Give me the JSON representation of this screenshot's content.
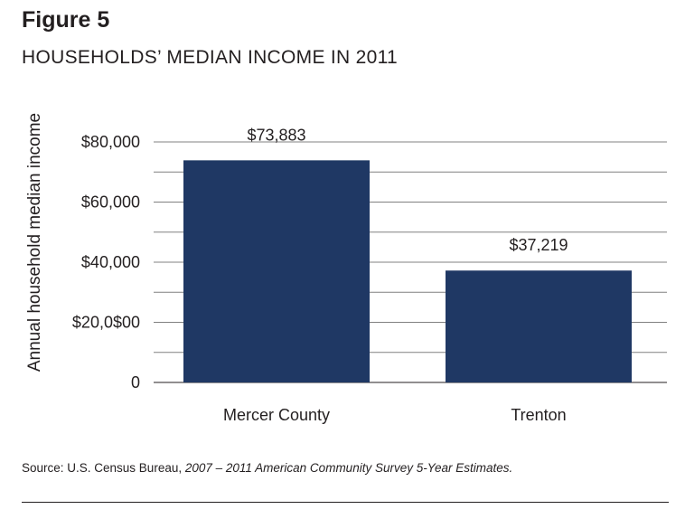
{
  "figure": {
    "label": "Figure 5",
    "title": "HOUSEHOLDS’ MEDIAN INCOME IN 2011"
  },
  "source": {
    "prefix": "Source: U.S. Census Bureau, ",
    "italic": "2007 – 2011 American Community Survey 5-Year Estimates."
  },
  "colors": {
    "bar": "#1f3864",
    "grid": "#808080"
  },
  "chart_data": {
    "type": "bar",
    "title": "HOUSEHOLDS’ MEDIAN INCOME IN 2011",
    "xlabel": "",
    "ylabel": "Annual household median income",
    "categories": [
      "Mercer County",
      "Trenton"
    ],
    "values": [
      73883,
      37219
    ],
    "data_labels": [
      "$73,883",
      "$37,219"
    ],
    "ylim": [
      0,
      80000
    ],
    "grid_step": 10000,
    "y_ticks": [
      {
        "value": 0,
        "label": "0"
      },
      {
        "value": 20000,
        "label": "$20,0$00"
      },
      {
        "value": 40000,
        "label": "$40,000"
      },
      {
        "value": 60000,
        "label": "$60,000"
      },
      {
        "value": 80000,
        "label": "$80,000"
      }
    ],
    "grid": true,
    "legend": "none"
  }
}
